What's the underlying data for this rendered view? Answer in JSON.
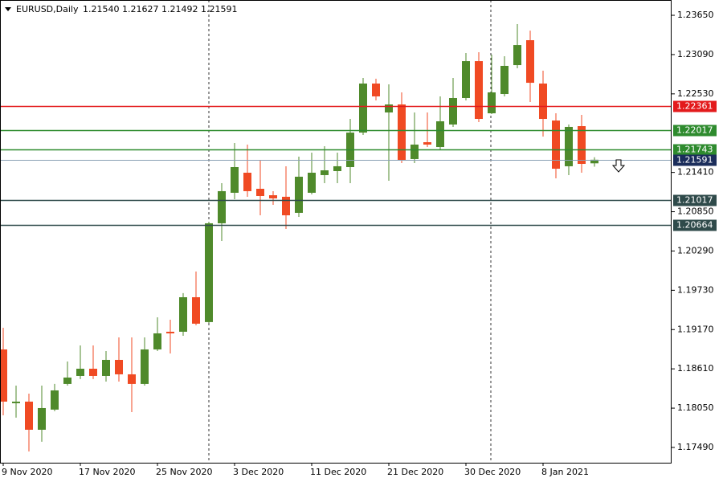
{
  "chart_data": {
    "type": "candlestick",
    "symbol": "EURUSD,Daily",
    "quote": [
      "1.21540",
      "1.21627",
      "1.21492",
      "1.21591"
    ],
    "categories": [
      "9 Nov 2020",
      null,
      null,
      null,
      null,
      null,
      "17 Nov 2020",
      null,
      null,
      null,
      null,
      null,
      "25 Nov 2020",
      null,
      null,
      null,
      null,
      null,
      "3 Dec 2020",
      null,
      null,
      null,
      null,
      null,
      "11 Dec 2020",
      null,
      null,
      null,
      null,
      null,
      "21 Dec 2020",
      null,
      null,
      null,
      null,
      null,
      "30 Dec 2020",
      null,
      null,
      null,
      null,
      null,
      "8 Jan 2021",
      null,
      null,
      null,
      null
    ],
    "open": [
      1.18887,
      1.1812,
      1.18143,
      1.17742,
      1.18029,
      1.18395,
      1.18509,
      1.18612,
      1.18509,
      1.18738,
      1.18532,
      1.18395,
      1.18887,
      1.19139,
      1.19139,
      1.19631,
      1.19277,
      1.20685,
      1.2112,
      1.21406,
      1.21177,
      1.21085,
      1.21063,
      1.20834,
      1.2112,
      1.21372,
      1.21429,
      1.21486,
      1.21978,
      1.22677,
      1.22265,
      1.22379,
      1.21601,
      1.21841,
      1.21772,
      1.22093,
      1.22471,
      1.22997,
      1.22253,
      1.22528,
      1.2294,
      1.23295,
      1.22677,
      1.2215,
      1.21498,
      1.2207,
      1.2154
    ],
    "high": [
      1.19196,
      1.18372,
      1.18257,
      1.18372,
      1.18395,
      1.18715,
      1.18944,
      1.18944,
      1.18864,
      1.19059,
      1.19059,
      1.19059,
      1.19345,
      1.19311,
      1.19689,
      1.19998,
      1.20708,
      1.21257,
      1.2183,
      1.21807,
      1.21578,
      1.21143,
      1.21498,
      1.21635,
      1.21692,
      1.21784,
      1.21692,
      1.22173,
      1.22757,
      1.22746,
      1.22665,
      1.22551,
      1.22265,
      1.22265,
      1.22494,
      1.22757,
      1.23112,
      1.23123,
      1.23089,
      1.23066,
      1.23524,
      1.23432,
      1.2286,
      1.22253,
      1.22093,
      1.2223,
      1.21627
    ],
    "low": [
      1.17948,
      1.17914,
      1.17433,
      1.17571,
      1.18006,
      1.18372,
      1.18464,
      1.18464,
      1.18429,
      1.18429,
      1.17994,
      1.18372,
      1.18864,
      1.1883,
      1.19082,
      1.19231,
      1.19265,
      1.20433,
      1.21028,
      1.21063,
      1.20799,
      1.20948,
      1.20605,
      1.20776,
      1.21097,
      1.21257,
      1.21257,
      1.21257,
      1.21944,
      1.22436,
      1.21292,
      1.21543,
      1.21543,
      1.21772,
      1.21738,
      1.22059,
      1.22436,
      1.22127,
      1.22242,
      1.22494,
      1.22894,
      1.22413,
      1.21921,
      1.21326,
      1.21372,
      1.21406,
      1.21492
    ],
    "close": [
      1.18143,
      1.18143,
      1.17742,
      1.18051,
      1.18303,
      1.18486,
      1.18612,
      1.18509,
      1.18738,
      1.18532,
      1.18395,
      1.18887,
      1.19116,
      1.19116,
      1.19631,
      1.19254,
      1.20685,
      1.21143,
      1.21486,
      1.21143,
      1.21074,
      1.2104,
      1.20799,
      1.21349,
      1.21406,
      1.2144,
      1.21498,
      1.21978,
      1.22677,
      1.22494,
      1.22379,
      1.21578,
      1.21807,
      1.21807,
      1.22139,
      1.22471,
      1.22997,
      1.22173,
      1.22551,
      1.22929,
      1.23226,
      1.22688,
      1.22173,
      1.21463,
      1.22059,
      1.21532,
      1.21591
    ],
    "up_color": "#4f8a2b",
    "down_color": "#f04a23",
    "ylim": [
      1.17272,
      1.23868
    ],
    "yticks": [
      {
        "value": 1.1749,
        "label": "1.17490"
      },
      {
        "value": 1.1805,
        "label": "1.18050"
      },
      {
        "value": 1.1861,
        "label": "1.18610"
      },
      {
        "value": 1.1917,
        "label": "1.19170"
      },
      {
        "value": 1.1973,
        "label": "1.19730"
      },
      {
        "value": 1.2029,
        "label": "1.20290"
      },
      {
        "value": 1.2085,
        "label": "1.20850"
      },
      {
        "value": 1.2141,
        "label": "1.21410"
      },
      {
        "value": 1.2253,
        "label": "1.22530"
      },
      {
        "value": 1.2309,
        "label": "1.23090"
      },
      {
        "value": 1.2365,
        "label": "1.23650"
      }
    ],
    "levels": [
      {
        "value": 1.22361,
        "color": "#e31a1c"
      },
      {
        "value": 1.22017,
        "color": "#2e8b2e"
      },
      {
        "value": 1.21743,
        "color": "#2e8b2e"
      },
      {
        "value": 1.21591,
        "color": "#1b2d5b"
      },
      {
        "value": 1.21017,
        "color": "#2f4a4a"
      },
      {
        "value": 1.20664,
        "color": "#2f4a4a"
      }
    ]
  }
}
